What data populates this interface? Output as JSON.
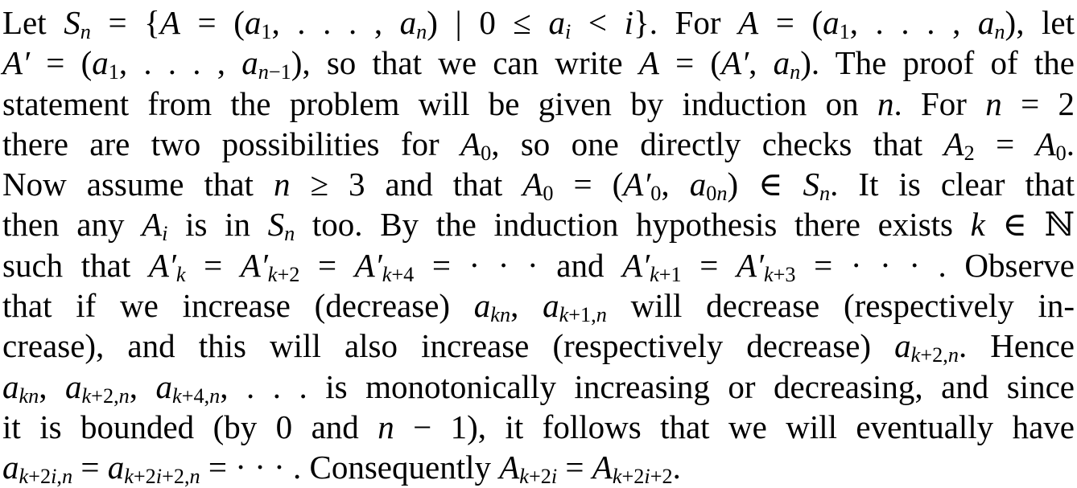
{
  "document": {
    "background": "#ffffff",
    "text_color": "#000000",
    "lines": [
      {
        "segments": [
          [
            "rm",
            "Let "
          ],
          [
            "it",
            "S"
          ],
          [
            "subit",
            "n"
          ],
          [
            "rm",
            " = {"
          ],
          [
            "it",
            "A"
          ],
          [
            "rm",
            " = ("
          ],
          [
            "it",
            "a"
          ],
          [
            "subrm",
            "1"
          ],
          [
            "rm",
            ", . . . , "
          ],
          [
            "it",
            "a"
          ],
          [
            "subit",
            "n"
          ],
          [
            "rm",
            ") | 0 ≤ "
          ],
          [
            "it",
            "a"
          ],
          [
            "subit",
            "i"
          ],
          [
            "rm",
            " < "
          ],
          [
            "it",
            "i"
          ],
          [
            "rm",
            "}. For "
          ],
          [
            "it",
            "A"
          ],
          [
            "rm",
            " = ("
          ],
          [
            "it",
            "a"
          ],
          [
            "subrm",
            "1"
          ],
          [
            "rm",
            ", . . . , "
          ],
          [
            "it",
            "a"
          ],
          [
            "subit",
            "n"
          ],
          [
            "rm",
            "), let"
          ]
        ]
      },
      {
        "segments": [
          [
            "it",
            "A′"
          ],
          [
            "rm",
            " = ("
          ],
          [
            "it",
            "a"
          ],
          [
            "subrm",
            "1"
          ],
          [
            "rm",
            ", . . . , "
          ],
          [
            "it",
            "a"
          ],
          [
            "subit",
            "n"
          ],
          [
            "subrm",
            "−1"
          ],
          [
            "rm",
            "), so that we can write "
          ],
          [
            "it",
            "A"
          ],
          [
            "rm",
            " = ("
          ],
          [
            "it",
            "A′"
          ],
          [
            "rm",
            ", "
          ],
          [
            "it",
            "a"
          ],
          [
            "subit",
            "n"
          ],
          [
            "rm",
            "). The proof of the"
          ]
        ]
      },
      {
        "segments": [
          [
            "rm",
            "statement from the problem will be given by induction on "
          ],
          [
            "it",
            "n"
          ],
          [
            "rm",
            ". For "
          ],
          [
            "it",
            "n"
          ],
          [
            "rm",
            " = 2"
          ]
        ]
      },
      {
        "segments": [
          [
            "rm",
            "there are two possibilities for "
          ],
          [
            "it",
            "A"
          ],
          [
            "subrm",
            "0"
          ],
          [
            "rm",
            ", so one directly checks that "
          ],
          [
            "it",
            "A"
          ],
          [
            "subrm",
            "2"
          ],
          [
            "rm",
            " = "
          ],
          [
            "it",
            "A"
          ],
          [
            "subrm",
            "0"
          ],
          [
            "rm",
            "."
          ]
        ]
      },
      {
        "segments": [
          [
            "rm",
            "Now assume that "
          ],
          [
            "it",
            "n"
          ],
          [
            "rm",
            " ≥ 3 and that "
          ],
          [
            "it",
            "A"
          ],
          [
            "subrm",
            "0"
          ],
          [
            "rm",
            " = ("
          ],
          [
            "it",
            "A′"
          ],
          [
            "subrm",
            "0"
          ],
          [
            "rm",
            ", "
          ],
          [
            "it",
            "a"
          ],
          [
            "subrm",
            "0"
          ],
          [
            "subit",
            "n"
          ],
          [
            "rm",
            ") ∈ "
          ],
          [
            "it",
            "S"
          ],
          [
            "subit",
            "n"
          ],
          [
            "rm",
            ". It is clear that"
          ]
        ]
      },
      {
        "segments": [
          [
            "rm",
            "then any "
          ],
          [
            "it",
            "A"
          ],
          [
            "subit",
            "i"
          ],
          [
            "rm",
            " is in "
          ],
          [
            "it",
            "S"
          ],
          [
            "subit",
            "n"
          ],
          [
            "rm",
            " too. By the induction hypothesis there exists "
          ],
          [
            "it",
            "k"
          ],
          [
            "rm",
            " ∈ ℕ"
          ]
        ]
      },
      {
        "segments": [
          [
            "rm",
            "such that "
          ],
          [
            "it",
            "A′"
          ],
          [
            "subit",
            "k"
          ],
          [
            "rm",
            " = "
          ],
          [
            "it",
            "A′"
          ],
          [
            "subit",
            "k"
          ],
          [
            "subrm",
            "+2"
          ],
          [
            "rm",
            " = "
          ],
          [
            "it",
            "A′"
          ],
          [
            "subit",
            "k"
          ],
          [
            "subrm",
            "+4"
          ],
          [
            "rm",
            " = · · · and "
          ],
          [
            "it",
            "A′"
          ],
          [
            "subit",
            "k"
          ],
          [
            "subrm",
            "+1"
          ],
          [
            "rm",
            " = "
          ],
          [
            "it",
            "A′"
          ],
          [
            "subit",
            "k"
          ],
          [
            "subrm",
            "+3"
          ],
          [
            "rm",
            " = · · · . Observe"
          ]
        ]
      },
      {
        "segments": [
          [
            "rm",
            "that if we increase (decrease) "
          ],
          [
            "it",
            "a"
          ],
          [
            "subit",
            "kn"
          ],
          [
            "rm",
            ", "
          ],
          [
            "it",
            "a"
          ],
          [
            "subit",
            "k"
          ],
          [
            "subrm",
            "+1,"
          ],
          [
            "subit",
            "n"
          ],
          [
            "rm",
            " will decrease (respectively in-"
          ]
        ]
      },
      {
        "segments": [
          [
            "rm",
            "crease), and this will also increase (respectively decrease) "
          ],
          [
            "it",
            "a"
          ],
          [
            "subit",
            "k"
          ],
          [
            "subrm",
            "+2,"
          ],
          [
            "subit",
            "n"
          ],
          [
            "rm",
            ". Hence"
          ]
        ]
      },
      {
        "segments": [
          [
            "it",
            "a"
          ],
          [
            "subit",
            "kn"
          ],
          [
            "rm",
            ", "
          ],
          [
            "it",
            "a"
          ],
          [
            "subit",
            "k"
          ],
          [
            "subrm",
            "+2,"
          ],
          [
            "subit",
            "n"
          ],
          [
            "rm",
            ", "
          ],
          [
            "it",
            "a"
          ],
          [
            "subit",
            "k"
          ],
          [
            "subrm",
            "+4,"
          ],
          [
            "subit",
            "n"
          ],
          [
            "rm",
            ", . . . is monotonically increasing or decreasing, and since"
          ]
        ]
      },
      {
        "segments": [
          [
            "rm",
            "it is bounded (by 0 and "
          ],
          [
            "it",
            "n"
          ],
          [
            "rm",
            " − 1), it follows that we will eventually have"
          ]
        ]
      },
      {
        "segments": [
          [
            "it",
            "a"
          ],
          [
            "subit",
            "k"
          ],
          [
            "subrm",
            "+2"
          ],
          [
            "subit",
            "i"
          ],
          [
            "subrm",
            ","
          ],
          [
            "subit",
            "n"
          ],
          [
            "rm",
            " = "
          ],
          [
            "it",
            "a"
          ],
          [
            "subit",
            "k"
          ],
          [
            "subrm",
            "+2"
          ],
          [
            "subit",
            "i"
          ],
          [
            "subrm",
            "+2,"
          ],
          [
            "subit",
            "n"
          ],
          [
            "rm",
            " = · · · . Consequently "
          ],
          [
            "it",
            "A"
          ],
          [
            "subit",
            "k"
          ],
          [
            "subrm",
            "+2"
          ],
          [
            "subit",
            "i"
          ],
          [
            "rm",
            " = "
          ],
          [
            "it",
            "A"
          ],
          [
            "subit",
            "k"
          ],
          [
            "subrm",
            "+2"
          ],
          [
            "subit",
            "i"
          ],
          [
            "subrm",
            "+2"
          ],
          [
            "rm",
            "."
          ]
        ]
      }
    ]
  }
}
